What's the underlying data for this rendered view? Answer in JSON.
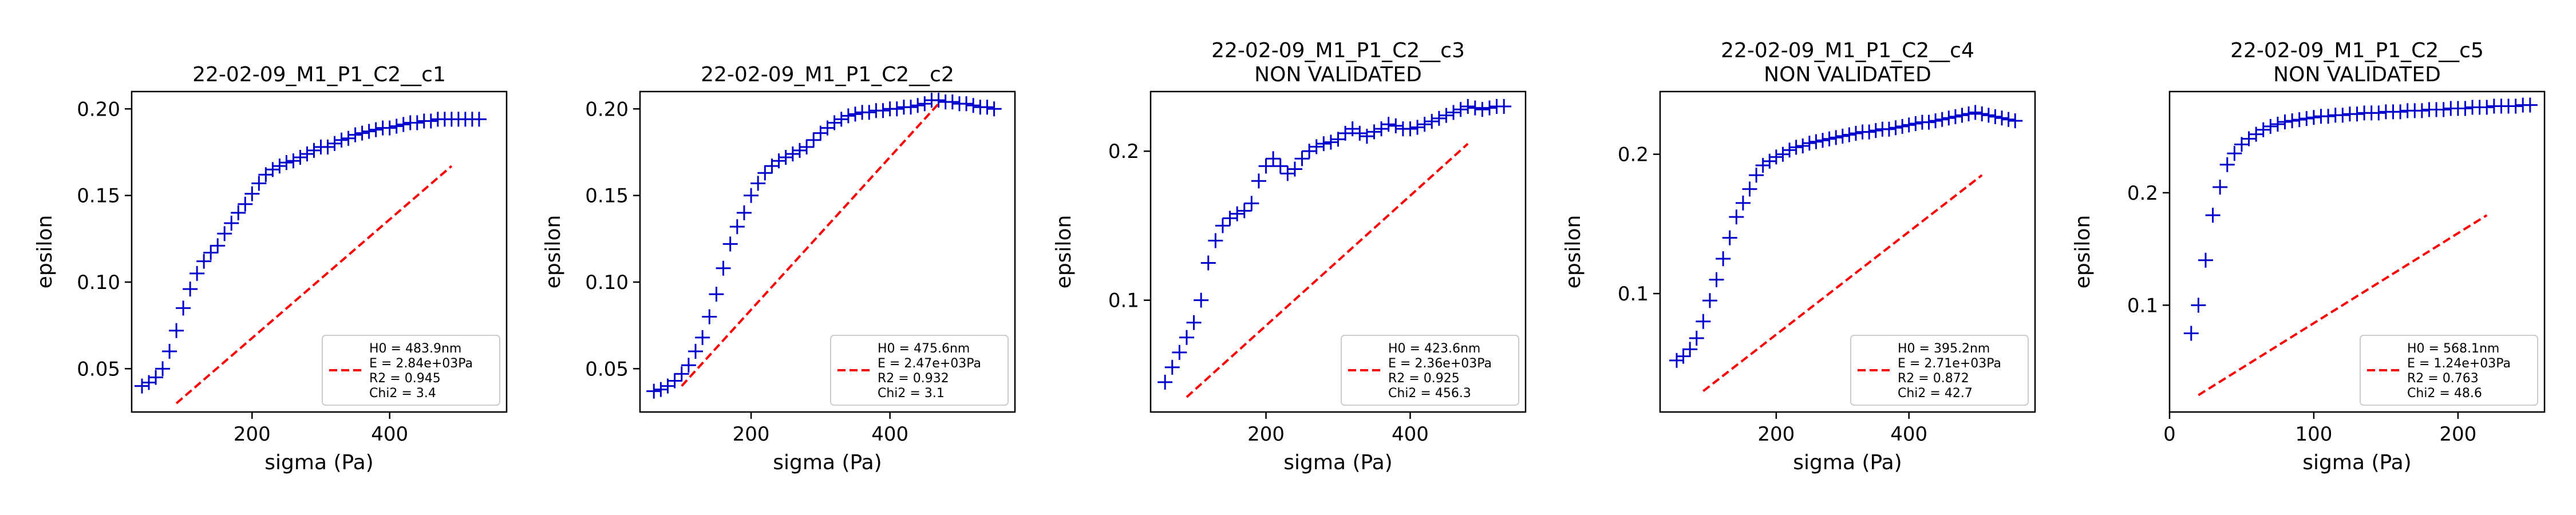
{
  "figure": {
    "background": "#ffffff"
  },
  "chart_data": [
    {
      "type": "scatter",
      "title": [
        "22-02-09_M1_P1_C2__c1"
      ],
      "xlabel": "sigma (Pa)",
      "ylabel": "epsilon",
      "xlim": [
        25,
        570
      ],
      "ylim": [
        0.025,
        0.21
      ],
      "xticks": [
        200,
        400
      ],
      "yticks": [
        0.05,
        0.1,
        0.15,
        0.2
      ],
      "ytick_labels": [
        "0.05",
        "0.10",
        "0.15",
        "0.20"
      ],
      "grid": false,
      "legend": {
        "position": "lower-right",
        "lines": [
          "H0 = 483.9nm",
          "E = 2.84e+03Pa",
          "R2 = 0.945",
          "Chi2 = 3.4"
        ]
      },
      "series": [
        {
          "marker": "+",
          "color": "#0000cc",
          "x": [
            40,
            50,
            60,
            70,
            80,
            90,
            100,
            110,
            120,
            130,
            140,
            150,
            160,
            170,
            180,
            190,
            200,
            210,
            220,
            230,
            240,
            250,
            260,
            270,
            280,
            290,
            300,
            310,
            320,
            330,
            340,
            350,
            360,
            370,
            380,
            390,
            400,
            410,
            420,
            430,
            440,
            450,
            460,
            470,
            480,
            490,
            500,
            510,
            520,
            530
          ],
          "y": [
            0.04,
            0.042,
            0.045,
            0.05,
            0.06,
            0.072,
            0.085,
            0.096,
            0.105,
            0.112,
            0.117,
            0.121,
            0.128,
            0.134,
            0.14,
            0.145,
            0.151,
            0.157,
            0.162,
            0.165,
            0.167,
            0.169,
            0.17,
            0.172,
            0.174,
            0.176,
            0.178,
            0.178,
            0.18,
            0.182,
            0.183,
            0.185,
            0.186,
            0.187,
            0.188,
            0.189,
            0.189,
            0.19,
            0.191,
            0.192,
            0.192,
            0.193,
            0.193,
            0.194,
            0.194,
            0.194,
            0.194,
            0.194,
            0.194,
            0.194
          ]
        },
        {
          "style": "dashed",
          "color": "#ff0000",
          "x": [
            90,
            490
          ],
          "y": [
            0.03,
            0.167
          ]
        }
      ]
    },
    {
      "type": "scatter",
      "title": [
        "22-02-09_M1_P1_C2__c2"
      ],
      "xlabel": "sigma (Pa)",
      "ylabel": "epsilon",
      "xlim": [
        40,
        580
      ],
      "ylim": [
        0.025,
        0.21
      ],
      "xticks": [
        200,
        400
      ],
      "yticks": [
        0.05,
        0.1,
        0.15,
        0.2
      ],
      "ytick_labels": [
        "0.05",
        "0.10",
        "0.15",
        "0.20"
      ],
      "grid": false,
      "legend": {
        "position": "lower-right",
        "lines": [
          "H0 = 475.6nm",
          "E = 2.47e+03Pa",
          "R2 = 0.932",
          "Chi2 = 3.1"
        ]
      },
      "series": [
        {
          "marker": "+",
          "color": "#0000cc",
          "x": [
            60,
            70,
            80,
            90,
            100,
            110,
            120,
            130,
            140,
            150,
            160,
            170,
            180,
            190,
            200,
            210,
            220,
            230,
            240,
            250,
            260,
            270,
            280,
            290,
            300,
            310,
            320,
            330,
            340,
            350,
            360,
            370,
            380,
            390,
            400,
            410,
            420,
            430,
            440,
            450,
            460,
            470,
            480,
            490,
            500,
            510,
            520,
            530,
            540,
            550
          ],
          "y": [
            0.037,
            0.038,
            0.04,
            0.043,
            0.047,
            0.052,
            0.06,
            0.068,
            0.08,
            0.093,
            0.108,
            0.122,
            0.132,
            0.14,
            0.15,
            0.157,
            0.163,
            0.167,
            0.17,
            0.172,
            0.174,
            0.176,
            0.178,
            0.182,
            0.186,
            0.189,
            0.192,
            0.194,
            0.196,
            0.197,
            0.198,
            0.198,
            0.199,
            0.199,
            0.2,
            0.2,
            0.201,
            0.201,
            0.202,
            0.203,
            0.205,
            0.205,
            0.204,
            0.204,
            0.203,
            0.203,
            0.202,
            0.201,
            0.201,
            0.2
          ]
        },
        {
          "style": "dashed",
          "color": "#ff0000",
          "x": [
            100,
            470
          ],
          "y": [
            0.04,
            0.203
          ]
        }
      ]
    },
    {
      "type": "scatter",
      "title": [
        "22-02-09_M1_P1_C2__c3",
        "NON VALIDATED"
      ],
      "xlabel": "sigma (Pa)",
      "ylabel": "epsilon",
      "xlim": [
        40,
        560
      ],
      "ylim": [
        0.025,
        0.24
      ],
      "xticks": [
        200,
        400
      ],
      "yticks": [
        0.1,
        0.2
      ],
      "ytick_labels": [
        "0.1",
        "0.2"
      ],
      "grid": false,
      "legend": {
        "position": "lower-right",
        "lines": [
          "H0 = 423.6nm",
          "E = 2.36e+03Pa",
          "R2 = 0.925",
          "Chi2 = 456.3"
        ]
      },
      "series": [
        {
          "marker": "+",
          "color": "#0000cc",
          "x": [
            60,
            70,
            80,
            90,
            100,
            110,
            120,
            130,
            140,
            150,
            160,
            170,
            180,
            190,
            200,
            210,
            220,
            230,
            240,
            250,
            260,
            270,
            280,
            290,
            300,
            310,
            320,
            330,
            340,
            350,
            360,
            370,
            380,
            390,
            400,
            410,
            420,
            430,
            440,
            450,
            460,
            470,
            480,
            490,
            500,
            510,
            520,
            530
          ],
          "y": [
            0.045,
            0.055,
            0.065,
            0.075,
            0.085,
            0.1,
            0.125,
            0.14,
            0.15,
            0.155,
            0.158,
            0.16,
            0.165,
            0.18,
            0.19,
            0.195,
            0.19,
            0.185,
            0.188,
            0.195,
            0.2,
            0.203,
            0.205,
            0.206,
            0.208,
            0.212,
            0.215,
            0.212,
            0.21,
            0.213,
            0.215,
            0.218,
            0.217,
            0.215,
            0.215,
            0.216,
            0.218,
            0.22,
            0.222,
            0.224,
            0.226,
            0.228,
            0.23,
            0.229,
            0.228,
            0.229,
            0.23,
            0.23
          ]
        },
        {
          "style": "dashed",
          "color": "#ff0000",
          "x": [
            90,
            480
          ],
          "y": [
            0.035,
            0.205
          ]
        }
      ]
    },
    {
      "type": "scatter",
      "title": [
        "22-02-09_M1_P1_C2__c4",
        "NON VALIDATED"
      ],
      "xlabel": "sigma (Pa)",
      "ylabel": "epsilon",
      "xlim": [
        25,
        590
      ],
      "ylim": [
        0.015,
        0.245
      ],
      "xticks": [
        200,
        400
      ],
      "yticks": [
        0.1,
        0.2
      ],
      "ytick_labels": [
        "0.1",
        "0.2"
      ],
      "grid": false,
      "legend": {
        "position": "lower-right",
        "lines": [
          "H0 = 395.2nm",
          "E = 2.71e+03Pa",
          "R2 = 0.872",
          "Chi2 = 42.7"
        ]
      },
      "series": [
        {
          "marker": "+",
          "color": "#0000cc",
          "x": [
            50,
            60,
            70,
            80,
            90,
            100,
            110,
            120,
            130,
            140,
            150,
            160,
            170,
            180,
            190,
            200,
            210,
            220,
            230,
            240,
            250,
            260,
            270,
            280,
            290,
            300,
            310,
            320,
            330,
            340,
            350,
            360,
            370,
            380,
            390,
            400,
            410,
            420,
            430,
            440,
            450,
            460,
            470,
            480,
            490,
            500,
            510,
            520,
            530,
            540,
            550,
            560
          ],
          "y": [
            0.052,
            0.055,
            0.06,
            0.068,
            0.08,
            0.095,
            0.11,
            0.125,
            0.14,
            0.155,
            0.165,
            0.175,
            0.185,
            0.192,
            0.195,
            0.198,
            0.2,
            0.203,
            0.205,
            0.206,
            0.208,
            0.209,
            0.21,
            0.211,
            0.212,
            0.213,
            0.214,
            0.215,
            0.216,
            0.216,
            0.217,
            0.218,
            0.218,
            0.219,
            0.22,
            0.221,
            0.222,
            0.223,
            0.223,
            0.224,
            0.225,
            0.226,
            0.227,
            0.228,
            0.229,
            0.23,
            0.229,
            0.228,
            0.227,
            0.226,
            0.225,
            0.224
          ]
        },
        {
          "style": "dashed",
          "color": "#ff0000",
          "x": [
            90,
            510
          ],
          "y": [
            0.03,
            0.185
          ]
        }
      ]
    },
    {
      "type": "scatter",
      "title": [
        "22-02-09_M1_P1_C2__c5",
        "NON VALIDATED"
      ],
      "xlabel": "sigma (Pa)",
      "ylabel": "epsilon",
      "xlim": [
        0,
        260
      ],
      "ylim": [
        0.005,
        0.29
      ],
      "xticks": [
        0,
        100,
        200
      ],
      "yticks": [
        0.1,
        0.2
      ],
      "ytick_labels": [
        "0.1",
        "0.2"
      ],
      "grid": false,
      "legend": {
        "position": "lower-right",
        "lines": [
          "H0 = 568.1nm",
          "E = 1.24e+03Pa",
          "R2 = 0.763",
          "Chi2 = 48.6"
        ]
      },
      "series": [
        {
          "marker": "+",
          "color": "#0000cc",
          "x": [
            15,
            20,
            25,
            30,
            35,
            40,
            45,
            50,
            55,
            60,
            65,
            70,
            75,
            80,
            85,
            90,
            95,
            100,
            105,
            110,
            115,
            120,
            125,
            130,
            135,
            140,
            145,
            150,
            155,
            160,
            165,
            170,
            175,
            180,
            185,
            190,
            195,
            200,
            205,
            210,
            215,
            220,
            225,
            230,
            235,
            240,
            245,
            250
          ],
          "y": [
            0.075,
            0.1,
            0.14,
            0.18,
            0.205,
            0.225,
            0.235,
            0.243,
            0.248,
            0.252,
            0.256,
            0.259,
            0.261,
            0.263,
            0.264,
            0.265,
            0.266,
            0.267,
            0.268,
            0.268,
            0.269,
            0.269,
            0.27,
            0.27,
            0.271,
            0.271,
            0.271,
            0.272,
            0.272,
            0.272,
            0.273,
            0.273,
            0.273,
            0.274,
            0.274,
            0.274,
            0.275,
            0.275,
            0.275,
            0.276,
            0.276,
            0.276,
            0.277,
            0.277,
            0.277,
            0.277,
            0.278,
            0.278
          ]
        },
        {
          "style": "dashed",
          "color": "#ff0000",
          "x": [
            20,
            220
          ],
          "y": [
            0.02,
            0.18
          ]
        }
      ]
    }
  ]
}
